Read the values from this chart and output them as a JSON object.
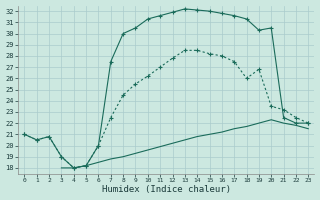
{
  "xlabel": "Humidex (Indice chaleur)",
  "bg_color": "#cce8e0",
  "grid_color": "#aacccc",
  "line_color": "#1a6b5a",
  "xlim": [
    -0.5,
    23.5
  ],
  "ylim": [
    17.5,
    32.5
  ],
  "xticks": [
    0,
    1,
    2,
    3,
    4,
    5,
    6,
    7,
    8,
    9,
    10,
    11,
    12,
    13,
    14,
    15,
    16,
    17,
    18,
    19,
    20,
    21,
    22,
    23
  ],
  "yticks": [
    18,
    19,
    20,
    21,
    22,
    23,
    24,
    25,
    26,
    27,
    28,
    29,
    30,
    31,
    32
  ],
  "curve_upper_x": [
    0,
    1,
    2,
    3,
    4,
    5,
    6,
    7,
    8,
    9,
    10,
    11,
    12,
    13,
    14,
    15,
    16,
    17,
    18,
    19,
    20,
    21,
    22,
    23
  ],
  "curve_upper_y": [
    21.0,
    20.5,
    20.8,
    19.0,
    18.0,
    18.2,
    20.0,
    27.5,
    30.0,
    30.5,
    31.3,
    31.6,
    31.9,
    32.2,
    32.1,
    32.0,
    31.8,
    31.6,
    31.3,
    30.3,
    30.5,
    22.5,
    22.0,
    22.0
  ],
  "curve_mid_x": [
    0,
    1,
    2,
    3,
    4,
    5,
    6,
    7,
    8,
    9,
    10,
    11,
    12,
    13,
    14,
    15,
    16,
    17,
    18,
    19,
    20,
    21,
    22,
    23
  ],
  "curve_mid_y": [
    21.0,
    20.5,
    20.8,
    19.0,
    18.0,
    18.2,
    20.0,
    22.5,
    24.5,
    25.5,
    26.2,
    27.0,
    27.8,
    28.5,
    28.5,
    28.2,
    28.0,
    27.5,
    26.0,
    26.8,
    23.5,
    23.2,
    22.5,
    22.0
  ],
  "curve_low_x": [
    3,
    4,
    5,
    6,
    7,
    8,
    9,
    10,
    11,
    12,
    13,
    14,
    15,
    16,
    17,
    18,
    19,
    20,
    21,
    22,
    23
  ],
  "curve_low_y": [
    18.0,
    18.0,
    18.2,
    18.5,
    18.8,
    19.0,
    19.3,
    19.6,
    19.9,
    20.2,
    20.5,
    20.8,
    21.0,
    21.2,
    21.5,
    21.7,
    22.0,
    22.3,
    22.0,
    21.8,
    21.5
  ]
}
